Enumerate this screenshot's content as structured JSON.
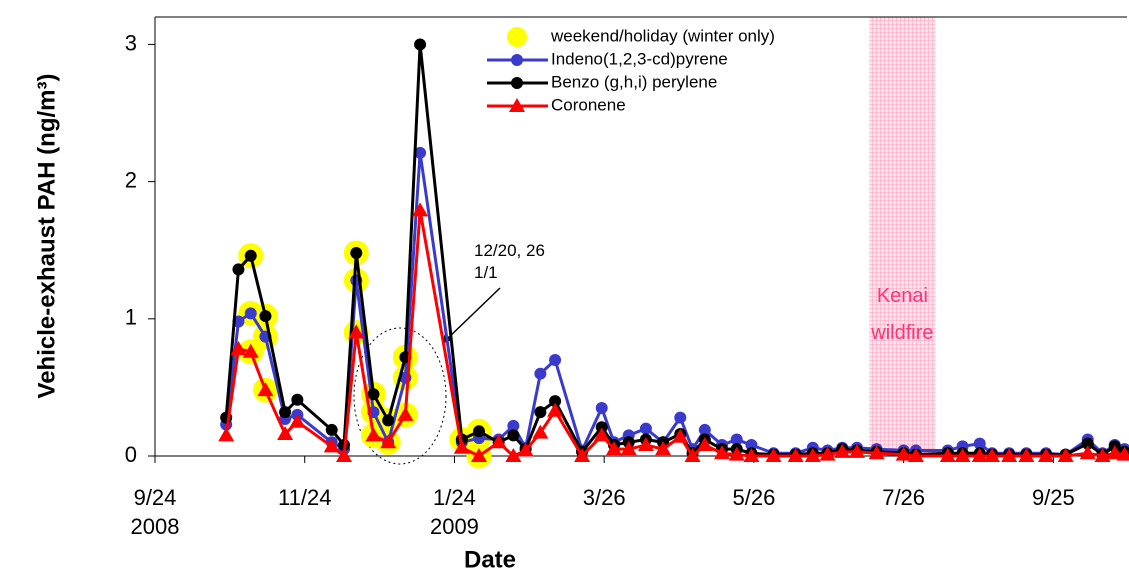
{
  "chart_data": {
    "type": "line",
    "ylabel": "Vehicle-exhaust  PAH (ng/m³)",
    "xlabel": "Date",
    "xlim": [
      "2008-09-24",
      "2009-10-25"
    ],
    "xticks": [
      {
        "value": "2008-09-24",
        "label": "9/24\n2008"
      },
      {
        "value": "2008-11-24",
        "label": "11/24"
      },
      {
        "value": "2009-01-24",
        "label": "1/24\n2009"
      },
      {
        "value": "2009-03-26",
        "label": "3/26"
      },
      {
        "value": "2009-05-26",
        "label": "5/26"
      },
      {
        "value": "2009-07-26",
        "label": "7/26"
      },
      {
        "value": "2009-09-25",
        "label": "9/25"
      }
    ],
    "ylim": [
      0,
      3.2
    ],
    "yticks": [
      0,
      1,
      2,
      3
    ],
    "x": [
      "2008-10-23",
      "2008-10-28",
      "2008-11-02",
      "2008-11-08",
      "2008-11-16",
      "2008-11-21",
      "2008-12-05",
      "2008-12-10",
      "2008-12-15",
      "2008-12-22",
      "2008-12-28",
      "2009-01-04",
      "2009-01-10",
      "2009-01-27",
      "2009-02-03",
      "2009-02-11",
      "2009-02-17",
      "2009-02-22",
      "2009-02-28",
      "2009-03-06",
      "2009-03-17",
      "2009-03-25",
      "2009-03-30",
      "2009-04-05",
      "2009-04-12",
      "2009-04-19",
      "2009-04-26",
      "2009-05-01",
      "2009-05-06",
      "2009-05-13",
      "2009-05-19",
      "2009-05-25",
      "2009-06-03",
      "2009-06-12",
      "2009-06-19",
      "2009-06-25",
      "2009-07-01",
      "2009-07-07",
      "2009-07-15",
      "2009-07-26",
      "2009-07-31",
      "2009-08-13",
      "2009-08-19",
      "2009-08-26",
      "2009-08-31",
      "2009-09-07",
      "2009-09-14",
      "2009-09-22",
      "2009-09-30",
      "2009-10-09",
      "2009-10-15",
      "2009-10-20",
      "2009-10-24"
    ],
    "series": [
      {
        "name": "weekend/holiday (winter only)",
        "color": "#ffff00",
        "marker": "circle",
        "line": false,
        "x": [
          "2008-11-02",
          "2008-11-02",
          "2008-11-02",
          "2008-11-08",
          "2008-11-08",
          "2008-11-08",
          "2008-12-15",
          "2008-12-15",
          "2008-12-15",
          "2008-12-22",
          "2008-12-22",
          "2008-12-22",
          "2008-12-28",
          "2008-12-28",
          "2009-01-04",
          "2009-01-04",
          "2009-01-04",
          "2009-01-27",
          "2009-02-03",
          "2009-02-03",
          "2009-02-03"
        ],
        "values": [
          1.46,
          1.04,
          0.76,
          1.02,
          0.87,
          0.48,
          1.48,
          1.28,
          0.9,
          0.45,
          0.32,
          0.15,
          0.26,
          0.1,
          0.72,
          0.57,
          0.3,
          0.12,
          0.18,
          0.13,
          0
        ]
      },
      {
        "name": "Indeno(1,2,3-cd)pyrene",
        "color": "#3a3acc",
        "marker": "circle",
        "line": true,
        "values": [
          0.23,
          0.98,
          1.04,
          0.87,
          0.27,
          0.3,
          0.1,
          0.05,
          1.28,
          0.32,
          0.1,
          0.57,
          2.21,
          0.1,
          0.13,
          0.12,
          0.22,
          0.06,
          0.6,
          0.7,
          0.04,
          0.35,
          0.1,
          0.15,
          0.2,
          0.1,
          0.28,
          0.05,
          0.19,
          0.08,
          0.12,
          0.08,
          0.02,
          0.02,
          0.06,
          0.04,
          0.06,
          0.06,
          0.05,
          0.04,
          0.04,
          0.04,
          0.07,
          0.09,
          0.02,
          0.02,
          0.02,
          0.02,
          0.01,
          0.12,
          0.02,
          0.08,
          0.05
        ]
      },
      {
        "name": "Benzo (g,h,i) perylene",
        "color": "#000000",
        "marker": "circle",
        "line": true,
        "values": [
          0.28,
          1.36,
          1.46,
          1.02,
          0.32,
          0.41,
          0.19,
          0.08,
          1.48,
          0.45,
          0.26,
          0.72,
          3.0,
          0.12,
          0.18,
          0.1,
          0.15,
          0.05,
          0.32,
          0.4,
          0.03,
          0.21,
          0.08,
          0.1,
          0.12,
          0.1,
          0.16,
          0.02,
          0.12,
          0.05,
          0.05,
          0.02,
          0.01,
          0.01,
          0.02,
          0.02,
          0.05,
          0.04,
          0.03,
          0.02,
          0.01,
          0.02,
          0.02,
          0.02,
          0.01,
          0.01,
          0.01,
          0.01,
          0.01,
          0.09,
          0.01,
          0.07,
          0.03
        ]
      },
      {
        "name": "Coronene",
        "color": "#ff0000",
        "marker": "triangle",
        "line": true,
        "values": [
          0.15,
          0.78,
          0.76,
          0.48,
          0.16,
          0.25,
          0.07,
          0,
          0.9,
          0.15,
          0.1,
          0.3,
          1.79,
          0.06,
          0,
          0.1,
          0,
          0.04,
          0.17,
          0.33,
          0,
          0.15,
          0.05,
          0.05,
          0.08,
          0.05,
          0.14,
          0,
          0.08,
          0.02,
          0.01,
          0,
          0,
          0,
          0,
          0.01,
          0.03,
          0.03,
          0.02,
          0.01,
          0,
          0,
          0,
          0,
          0,
          0,
          0,
          0,
          0,
          0.02,
          0,
          0.02,
          0.01
        ]
      }
    ],
    "shade": {
      "label": "Kenai\nwildfire",
      "x": [
        "2009-07-12",
        "2009-08-08"
      ],
      "color": "#ff3377"
    },
    "annotation": "12/20, 26\n1/1"
  }
}
